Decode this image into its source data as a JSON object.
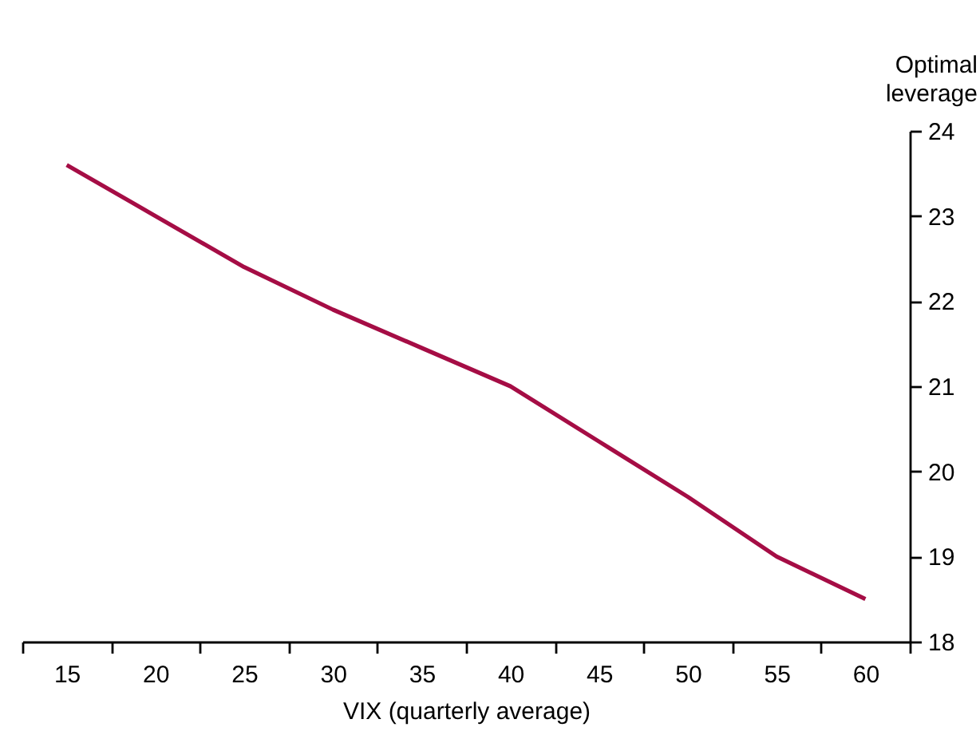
{
  "chart_data": {
    "type": "line",
    "xlabel": "VIX (quarterly average)",
    "ylabel": "Optimal leverage",
    "categories": [
      "15",
      "20",
      "25",
      "30",
      "35",
      "40",
      "45",
      "50",
      "55",
      "60"
    ],
    "series": [
      {
        "color": "#a50d45",
        "values": [
          23.6,
          23.0,
          22.4,
          21.9,
          21.45,
          21.0,
          20.35,
          19.7,
          19.0,
          18.5
        ]
      }
    ],
    "ylim": [
      18,
      24
    ],
    "yticks": [
      18,
      19,
      20,
      21,
      22,
      23,
      24
    ],
    "grid": false,
    "marker": "none",
    "line_style": "solid"
  }
}
